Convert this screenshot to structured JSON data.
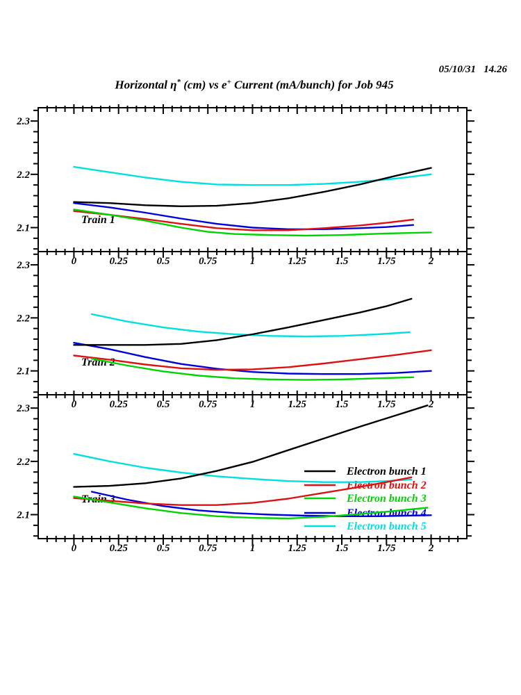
{
  "header": {
    "datetime": "05/10/31   14.26",
    "title_part1": "Horizontal η",
    "title_sup1": "*",
    "title_part2": " (cm) vs e",
    "title_sup2": "+",
    "title_part3": " Current (mA/bunch) for Job 945"
  },
  "chart_data": {
    "type": "line",
    "title": "Horizontal η* (cm) vs e+ Current (mA/bunch) for Job 945",
    "timestamp": "05/10/31 14.26",
    "xlim": [
      -0.2,
      2.2
    ],
    "ylim": [
      2.055,
      2.325
    ],
    "x_major_ticks": [
      0,
      0.25,
      0.5,
      0.75,
      1,
      1.25,
      1.5,
      1.75,
      2
    ],
    "x_tick_labels": [
      "0",
      "0.25",
      "0.5",
      "0.75",
      "1",
      "1.25",
      "1.5",
      "1.75",
      "2"
    ],
    "x_minor_step": 0.05,
    "y_major_ticks": [
      2.1,
      2.2,
      2.3
    ],
    "y_tick_labels": [
      "2.1",
      "2.2",
      "2.3"
    ],
    "y_minor_step": 0.02,
    "grid": false,
    "legend_position": "inside panel 3, right",
    "legend": [
      {
        "label": "Electron bunch 1",
        "color": "#000000"
      },
      {
        "label": "Electron bunch 2",
        "color": "#dd1111"
      },
      {
        "label": "Electron bunch 3",
        "color": "#00d400"
      },
      {
        "label": "Electron bunch 4",
        "color": "#0000dd"
      },
      {
        "label": "Electron bunch 5",
        "color": "#00e0e0"
      }
    ],
    "panels": [
      {
        "label": "Train 1",
        "series": [
          {
            "name": "Electron bunch 1",
            "color": "#000000",
            "points": [
              [
                0,
                2.148
              ],
              [
                0.2,
                2.146
              ],
              [
                0.4,
                2.142
              ],
              [
                0.6,
                2.14
              ],
              [
                0.8,
                2.141
              ],
              [
                1.0,
                2.146
              ],
              [
                1.2,
                2.155
              ],
              [
                1.4,
                2.167
              ],
              [
                1.6,
                2.181
              ],
              [
                1.8,
                2.197
              ],
              [
                2.0,
                2.212
              ]
            ]
          },
          {
            "name": "Electron bunch 2",
            "color": "#dd1111",
            "points": [
              [
                0,
                2.131
              ],
              [
                0.2,
                2.124
              ],
              [
                0.4,
                2.116
              ],
              [
                0.6,
                2.107
              ],
              [
                0.8,
                2.099
              ],
              [
                1.0,
                2.095
              ],
              [
                1.2,
                2.095
              ],
              [
                1.4,
                2.099
              ],
              [
                1.6,
                2.104
              ],
              [
                1.75,
                2.109
              ],
              [
                1.9,
                2.115
              ]
            ]
          },
          {
            "name": "Electron bunch 3",
            "color": "#00d400",
            "points": [
              [
                0,
                2.134
              ],
              [
                0.2,
                2.124
              ],
              [
                0.4,
                2.113
              ],
              [
                0.6,
                2.1
              ],
              [
                0.75,
                2.092
              ],
              [
                0.9,
                2.088
              ],
              [
                1.1,
                2.086
              ],
              [
                1.3,
                2.085
              ],
              [
                1.5,
                2.086
              ],
              [
                1.75,
                2.089
              ],
              [
                2.0,
                2.091
              ]
            ]
          },
          {
            "name": "Electron bunch 4",
            "color": "#0000dd",
            "points": [
              [
                0,
                2.146
              ],
              [
                0.2,
                2.138
              ],
              [
                0.4,
                2.128
              ],
              [
                0.6,
                2.117
              ],
              [
                0.8,
                2.107
              ],
              [
                1.0,
                2.1
              ],
              [
                1.2,
                2.097
              ],
              [
                1.4,
                2.097
              ],
              [
                1.6,
                2.099
              ],
              [
                1.75,
                2.101
              ],
              [
                1.9,
                2.105
              ]
            ]
          },
          {
            "name": "Electron bunch 5",
            "color": "#00e0e0",
            "points": [
              [
                0,
                2.214
              ],
              [
                0.2,
                2.204
              ],
              [
                0.4,
                2.194
              ],
              [
                0.6,
                2.186
              ],
              [
                0.8,
                2.181
              ],
              [
                1.0,
                2.18
              ],
              [
                1.2,
                2.18
              ],
              [
                1.4,
                2.182
              ],
              [
                1.6,
                2.186
              ],
              [
                1.8,
                2.192
              ],
              [
                2.0,
                2.2
              ]
            ]
          }
        ]
      },
      {
        "label": "Train 2",
        "series": [
          {
            "name": "Electron bunch 1",
            "color": "#000000",
            "points": [
              [
                0,
                2.149
              ],
              [
                0.2,
                2.149
              ],
              [
                0.4,
                2.149
              ],
              [
                0.6,
                2.151
              ],
              [
                0.8,
                2.158
              ],
              [
                1.0,
                2.169
              ],
              [
                1.2,
                2.182
              ],
              [
                1.4,
                2.196
              ],
              [
                1.6,
                2.21
              ],
              [
                1.75,
                2.222
              ],
              [
                1.89,
                2.236
              ]
            ]
          },
          {
            "name": "Electron bunch 2",
            "color": "#dd1111",
            "points": [
              [
                0,
                2.129
              ],
              [
                0.2,
                2.121
              ],
              [
                0.4,
                2.112
              ],
              [
                0.6,
                2.105
              ],
              [
                0.8,
                2.102
              ],
              [
                1.0,
                2.103
              ],
              [
                1.2,
                2.107
              ],
              [
                1.4,
                2.114
              ],
              [
                1.6,
                2.122
              ],
              [
                1.8,
                2.13
              ],
              [
                2.0,
                2.139
              ]
            ]
          },
          {
            "name": "Electron bunch 3",
            "color": "#00d400",
            "points": [
              [
                0.1,
                2.123
              ],
              [
                0.3,
                2.11
              ],
              [
                0.5,
                2.099
              ],
              [
                0.7,
                2.091
              ],
              [
                0.9,
                2.086
              ],
              [
                1.1,
                2.084
              ],
              [
                1.3,
                2.083
              ],
              [
                1.5,
                2.084
              ],
              [
                1.7,
                2.086
              ],
              [
                1.9,
                2.088
              ]
            ]
          },
          {
            "name": "Electron bunch 4",
            "color": "#0000dd",
            "points": [
              [
                0,
                2.153
              ],
              [
                0.2,
                2.141
              ],
              [
                0.4,
                2.126
              ],
              [
                0.6,
                2.113
              ],
              [
                0.8,
                2.104
              ],
              [
                1.0,
                2.098
              ],
              [
                1.2,
                2.095
              ],
              [
                1.4,
                2.094
              ],
              [
                1.6,
                2.094
              ],
              [
                1.8,
                2.096
              ],
              [
                2.0,
                2.1
              ]
            ]
          },
          {
            "name": "Electron bunch 5",
            "color": "#00e0e0",
            "points": [
              [
                0.1,
                2.207
              ],
              [
                0.3,
                2.193
              ],
              [
                0.5,
                2.182
              ],
              [
                0.7,
                2.174
              ],
              [
                0.9,
                2.169
              ],
              [
                1.1,
                2.166
              ],
              [
                1.3,
                2.165
              ],
              [
                1.5,
                2.166
              ],
              [
                1.7,
                2.169
              ],
              [
                1.88,
                2.173
              ]
            ]
          }
        ]
      },
      {
        "label": "Train 3",
        "series": [
          {
            "name": "Electron bunch 1",
            "color": "#000000",
            "points": [
              [
                0,
                2.152
              ],
              [
                0.2,
                2.154
              ],
              [
                0.4,
                2.159
              ],
              [
                0.6,
                2.168
              ],
              [
                0.8,
                2.182
              ],
              [
                1.0,
                2.199
              ],
              [
                1.2,
                2.221
              ],
              [
                1.4,
                2.243
              ],
              [
                1.6,
                2.265
              ],
              [
                1.8,
                2.286
              ],
              [
                1.98,
                2.305
              ]
            ]
          },
          {
            "name": "Electron bunch 2",
            "color": "#dd1111",
            "points": [
              [
                0,
                2.131
              ],
              [
                0.2,
                2.126
              ],
              [
                0.4,
                2.121
              ],
              [
                0.6,
                2.118
              ],
              [
                0.8,
                2.118
              ],
              [
                1.0,
                2.122
              ],
              [
                1.2,
                2.13
              ],
              [
                1.4,
                2.141
              ],
              [
                1.6,
                2.152
              ],
              [
                1.75,
                2.161
              ],
              [
                1.89,
                2.17
              ]
            ]
          },
          {
            "name": "Electron bunch 3",
            "color": "#00d400",
            "points": [
              [
                0,
                2.134
              ],
              [
                0.2,
                2.123
              ],
              [
                0.4,
                2.112
              ],
              [
                0.6,
                2.103
              ],
              [
                0.8,
                2.097
              ],
              [
                1.0,
                2.094
              ],
              [
                1.2,
                2.093
              ],
              [
                1.4,
                2.096
              ],
              [
                1.6,
                2.101
              ],
              [
                1.8,
                2.107
              ],
              [
                1.98,
                2.113
              ]
            ]
          },
          {
            "name": "Electron bunch 4",
            "color": "#0000dd",
            "points": [
              [
                0.1,
                2.143
              ],
              [
                0.3,
                2.128
              ],
              [
                0.5,
                2.116
              ],
              [
                0.7,
                2.108
              ],
              [
                0.9,
                2.103
              ],
              [
                1.1,
                2.1
              ],
              [
                1.3,
                2.098
              ],
              [
                1.5,
                2.097
              ],
              [
                1.7,
                2.097
              ],
              [
                1.85,
                2.098
              ],
              [
                2.0,
                2.099
              ]
            ]
          },
          {
            "name": "Electron bunch 5",
            "color": "#00e0e0",
            "points": [
              [
                0,
                2.214
              ],
              [
                0.2,
                2.2
              ],
              [
                0.4,
                2.188
              ],
              [
                0.6,
                2.179
              ],
              [
                0.8,
                2.172
              ],
              [
                1.0,
                2.167
              ],
              [
                1.2,
                2.163
              ],
              [
                1.4,
                2.161
              ],
              [
                1.6,
                2.161
              ],
              [
                1.75,
                2.163
              ],
              [
                1.89,
                2.166
              ]
            ]
          }
        ]
      }
    ]
  }
}
